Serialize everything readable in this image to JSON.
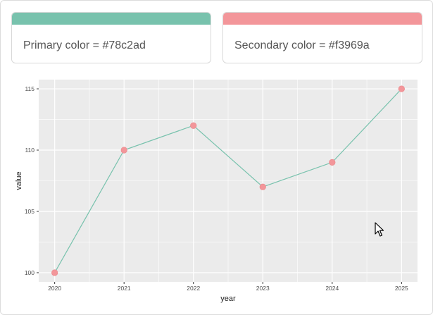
{
  "cards": {
    "primary": {
      "label": "Primary color = #78c2ad",
      "color": "#78c2ad"
    },
    "secondary": {
      "label": "Secondary color = #f3969a",
      "color": "#f3969a"
    }
  },
  "colors": {
    "panel_background": "#ebebeb",
    "grid_line": "#ffffff",
    "line": "#78c2ad",
    "point": "#f3969a"
  },
  "chart_data": {
    "type": "line",
    "x": [
      2020,
      2021,
      2022,
      2023,
      2024,
      2025
    ],
    "values": [
      100,
      110,
      112,
      107,
      109,
      115
    ],
    "xlabel": "year",
    "ylabel": "value",
    "x_ticks": [
      "2020",
      "2021",
      "2022",
      "2023",
      "2024",
      "2025"
    ],
    "y_ticks": [
      "100",
      "105",
      "110",
      "115"
    ],
    "xlim": [
      2019.77,
      2025.23
    ],
    "ylim": [
      99.25,
      115.75
    ],
    "grid": true,
    "legend": "none"
  }
}
